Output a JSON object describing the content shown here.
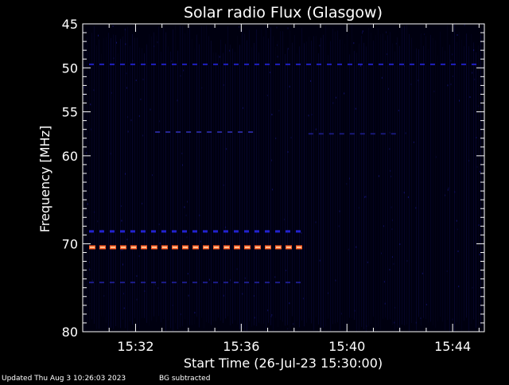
{
  "chart_data": {
    "type": "heatmap",
    "title": "Solar radio Flux (Glasgow)",
    "xlabel": "Start Time (26-Jul-23 15:30:00)",
    "ylabel": "Frequency [MHz]",
    "x_unit": "minutes after 15:30:00 UT",
    "x_range": [
      0,
      15.2
    ],
    "y_range": [
      45,
      80
    ],
    "y_scale": "linear, increasing downward",
    "x_ticks": [
      {
        "label": "15:32",
        "value": 2
      },
      {
        "label": "15:36",
        "value": 6
      },
      {
        "label": "15:40",
        "value": 10
      },
      {
        "label": "15:44",
        "value": 14
      }
    ],
    "y_ticks": [
      {
        "label": "45",
        "value": 45
      },
      {
        "label": "50",
        "value": 50
      },
      {
        "label": "55",
        "value": 55
      },
      {
        "label": "60",
        "value": 60
      },
      {
        "label": "70",
        "value": 70
      },
      {
        "label": "80",
        "value": 80
      }
    ],
    "features": [
      {
        "freq_mhz": 49.6,
        "t_start": 0,
        "t_end": 15.2,
        "color": "#2a2aff",
        "intensity": 0.45
      },
      {
        "freq_mhz": 57.3,
        "t_start": 2.5,
        "t_end": 6.5,
        "color": "#3a3ad8",
        "intensity": 0.3
      },
      {
        "freq_mhz": 57.5,
        "t_start": 8.3,
        "t_end": 12.2,
        "color": "#2828b8",
        "intensity": 0.2
      },
      {
        "freq_mhz": 68.6,
        "t_start": 0,
        "t_end": 8.6,
        "color": "#2a2aff",
        "intensity": 0.6
      },
      {
        "freq_mhz": 70.4,
        "t_start": 0,
        "t_end": 8.6,
        "color": "#ff5a22",
        "intensity": 1.0
      },
      {
        "freq_mhz": 74.4,
        "t_start": 0,
        "t_end": 8.6,
        "color": "#2b2bc8",
        "intensity": 0.3
      }
    ],
    "background_color": "#000010"
  },
  "footer": {
    "updated": "Updated Thu Aug  3 10:26:03 2023",
    "note": "BG subtracted"
  },
  "colors": {
    "background": "#000000",
    "plot_background": "#00000c",
    "axis": "#ffffff"
  }
}
